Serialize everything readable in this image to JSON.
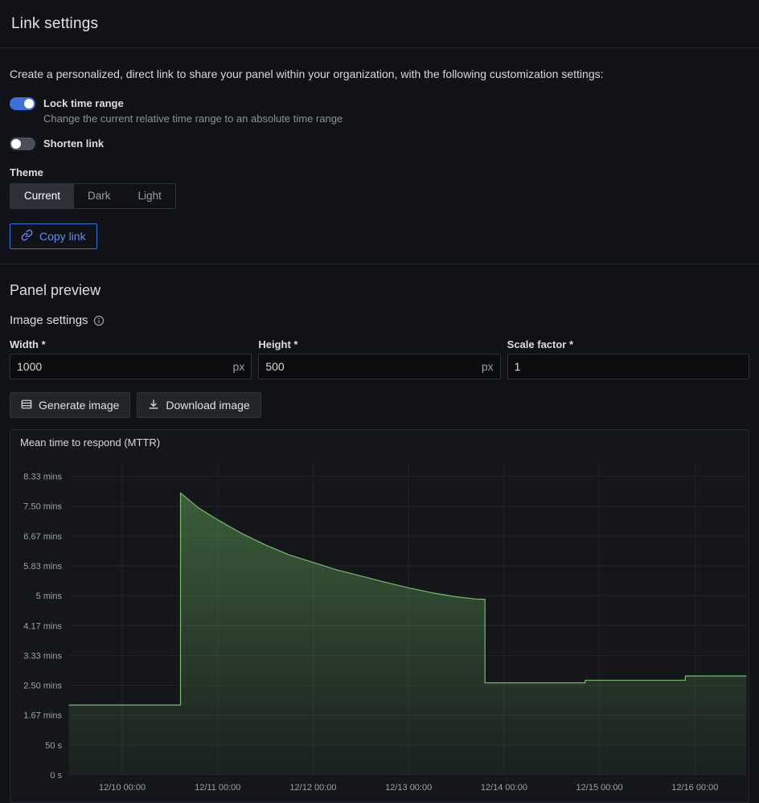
{
  "header": {
    "title": "Link settings"
  },
  "intro": "Create a personalized, direct link to share your panel within your organization, with the following customization settings:",
  "toggles": [
    {
      "label": "Lock time range",
      "description": "Change the current relative time range to an absolute time range",
      "on": true
    },
    {
      "label": "Shorten link",
      "on": false
    }
  ],
  "theme": {
    "label": "Theme",
    "options": [
      "Current",
      "Dark",
      "Light"
    ],
    "selected": "Current"
  },
  "copy_link": {
    "label": "Copy link"
  },
  "section": {
    "panel_preview_title": "Panel preview",
    "image_settings_title": "Image settings"
  },
  "fields": [
    {
      "label": "Width *",
      "value": "1000",
      "suffix": "px"
    },
    {
      "label": "Height *",
      "value": "500",
      "suffix": "px"
    },
    {
      "label": "Scale factor *",
      "value": "1",
      "suffix": ""
    }
  ],
  "actions": {
    "generate_label": "Generate image",
    "download_label": "Download image"
  },
  "colors": {
    "background": "#111217",
    "accent_blue": "#3d71d9",
    "green": "#73bf69",
    "border": "#2c3235"
  },
  "chart_data": {
    "type": "area",
    "title": "Mean time to respond (MTTR)",
    "xlabel": "",
    "ylabel": "",
    "grid": true,
    "legend": false,
    "xlim": [
      -0.565,
      6.545
    ],
    "ylim": [
      0,
      8.75
    ],
    "x_ticks": [
      {
        "v": 0,
        "label": "12/10 00:00"
      },
      {
        "v": 1,
        "label": "12/11 00:00"
      },
      {
        "v": 2,
        "label": "12/12 00:00"
      },
      {
        "v": 3,
        "label": "12/13 00:00"
      },
      {
        "v": 4,
        "label": "12/14 00:00"
      },
      {
        "v": 5,
        "label": "12/15 00:00"
      },
      {
        "v": 6,
        "label": "12/16 00:00"
      }
    ],
    "y_ticks": [
      {
        "v": 0,
        "label": "0 s"
      },
      {
        "v": 0.833,
        "label": "50 s"
      },
      {
        "v": 1.667,
        "label": "1.67 mins"
      },
      {
        "v": 2.5,
        "label": "2.50 mins"
      },
      {
        "v": 3.333,
        "label": "3.33 mins"
      },
      {
        "v": 4.167,
        "label": "4.17 mins"
      },
      {
        "v": 5,
        "label": "5 mins"
      },
      {
        "v": 5.833,
        "label": "5.83 mins"
      },
      {
        "v": 6.667,
        "label": "6.67 mins"
      },
      {
        "v": 7.5,
        "label": "7.50 mins"
      },
      {
        "v": 8.333,
        "label": "8.33 mins"
      }
    ],
    "series": [
      {
        "name": "Mean time to respond (MTTR)",
        "color": "#73bf69",
        "unit": "mins",
        "points": [
          [
            -0.56,
            1.95
          ],
          [
            0.61,
            1.95
          ],
          [
            0.61,
            7.87
          ],
          [
            0.8,
            7.45
          ],
          [
            1.0,
            7.12
          ],
          [
            1.25,
            6.74
          ],
          [
            1.5,
            6.42
          ],
          [
            1.75,
            6.14
          ],
          [
            2.0,
            5.93
          ],
          [
            2.25,
            5.72
          ],
          [
            2.5,
            5.55
          ],
          [
            2.75,
            5.38
          ],
          [
            3.0,
            5.22
          ],
          [
            3.25,
            5.08
          ],
          [
            3.5,
            4.97
          ],
          [
            3.7,
            4.91
          ],
          [
            3.8,
            4.9
          ],
          [
            3.8,
            2.57
          ],
          [
            4.85,
            2.57
          ],
          [
            4.85,
            2.64
          ],
          [
            5.9,
            2.64
          ],
          [
            5.9,
            2.76
          ],
          [
            6.54,
            2.76
          ]
        ]
      }
    ]
  }
}
